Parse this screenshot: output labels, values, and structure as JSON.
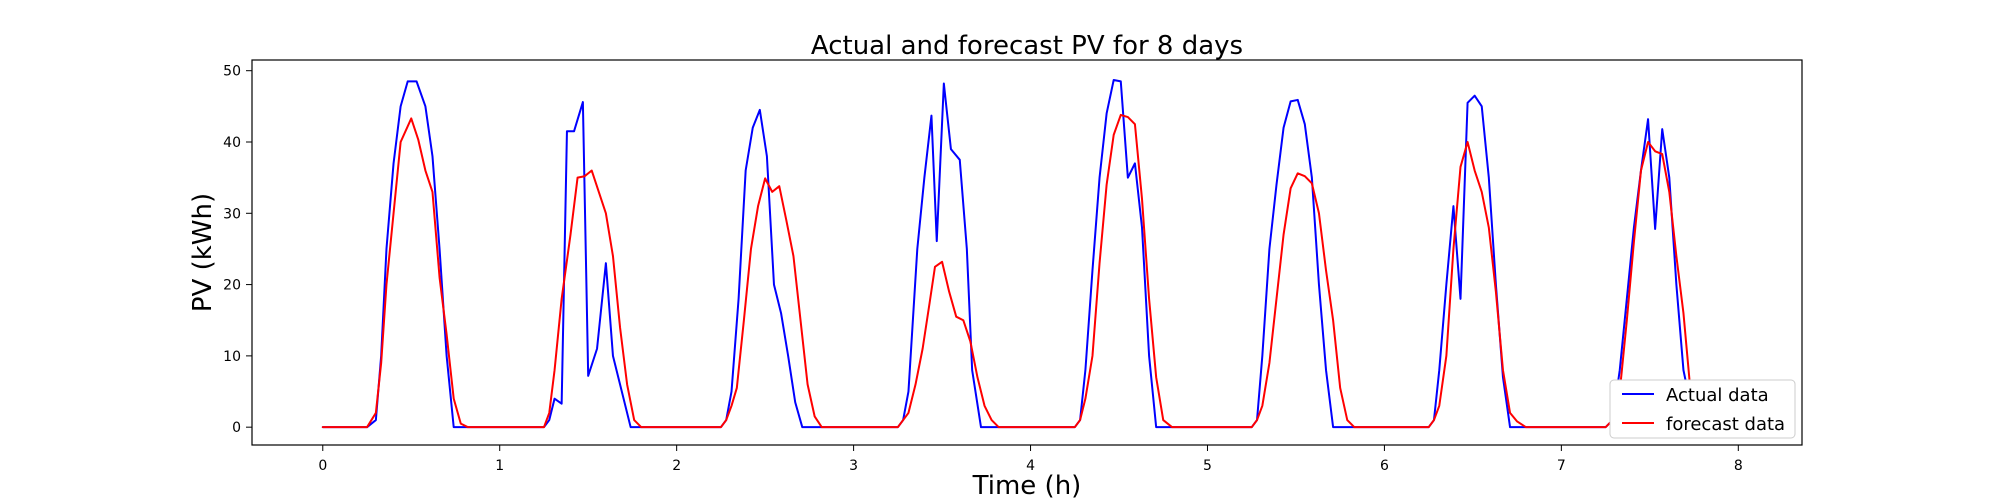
{
  "chart_data": {
    "type": "line",
    "title": "Actual and forecast PV for 8 days",
    "xlabel": "Time (h)",
    "ylabel": "PV (kWh)",
    "xlim": [
      -0.4,
      8.36
    ],
    "ylim": [
      -2.5,
      51.5
    ],
    "xticks": [
      0,
      1,
      2,
      3,
      4,
      5,
      6,
      7,
      8
    ],
    "yticks": [
      0,
      10,
      20,
      30,
      40,
      50
    ],
    "grid": false,
    "legend_position": "lower right",
    "series": [
      {
        "name": "Actual data",
        "color": "#0000ff",
        "points": [
          [
            0,
            0
          ],
          [
            0.25,
            0
          ],
          [
            0.3,
            1
          ],
          [
            0.33,
            10
          ],
          [
            0.36,
            25
          ],
          [
            0.4,
            37
          ],
          [
            0.44,
            45
          ],
          [
            0.48,
            48.5
          ],
          [
            0.53,
            48.5
          ],
          [
            0.58,
            45
          ],
          [
            0.62,
            38
          ],
          [
            0.66,
            25
          ],
          [
            0.7,
            10
          ],
          [
            0.74,
            0
          ],
          [
            0.8,
            0
          ],
          [
            1,
            0
          ],
          [
            1.25,
            0
          ],
          [
            1.28,
            1
          ],
          [
            1.31,
            4
          ],
          [
            1.35,
            3.3
          ],
          [
            1.38,
            41.5
          ],
          [
            1.42,
            41.5
          ],
          [
            1.47,
            45.6
          ],
          [
            1.5,
            7.2
          ],
          [
            1.55,
            11
          ],
          [
            1.6,
            23
          ],
          [
            1.64,
            10
          ],
          [
            1.68,
            6
          ],
          [
            1.74,
            0
          ],
          [
            1.8,
            0
          ],
          [
            2,
            0
          ],
          [
            2.25,
            0
          ],
          [
            2.28,
            1
          ],
          [
            2.31,
            5
          ],
          [
            2.35,
            18
          ],
          [
            2.39,
            36
          ],
          [
            2.43,
            42
          ],
          [
            2.47,
            44.5
          ],
          [
            2.51,
            38
          ],
          [
            2.55,
            20
          ],
          [
            2.59,
            16
          ],
          [
            2.63,
            10
          ],
          [
            2.67,
            3.5
          ],
          [
            2.71,
            0
          ],
          [
            2.8,
            0
          ],
          [
            3,
            0
          ],
          [
            3.25,
            0
          ],
          [
            3.28,
            1
          ],
          [
            3.31,
            5
          ],
          [
            3.36,
            25
          ],
          [
            3.4,
            35
          ],
          [
            3.44,
            43.7
          ],
          [
            3.47,
            26.1
          ],
          [
            3.51,
            48.2
          ],
          [
            3.55,
            39
          ],
          [
            3.6,
            37.5
          ],
          [
            3.64,
            25
          ],
          [
            3.67,
            8
          ],
          [
            3.72,
            0
          ],
          [
            3.8,
            0
          ],
          [
            4,
            0
          ],
          [
            4.25,
            0
          ],
          [
            4.28,
            1
          ],
          [
            4.31,
            8
          ],
          [
            4.35,
            22
          ],
          [
            4.39,
            35
          ],
          [
            4.43,
            44
          ],
          [
            4.47,
            48.7
          ],
          [
            4.51,
            48.5
          ],
          [
            4.55,
            35
          ],
          [
            4.59,
            37
          ],
          [
            4.63,
            28
          ],
          [
            4.67,
            10
          ],
          [
            4.71,
            0
          ],
          [
            4.8,
            0
          ],
          [
            5,
            0
          ],
          [
            5.25,
            0
          ],
          [
            5.28,
            1
          ],
          [
            5.31,
            10
          ],
          [
            5.35,
            25
          ],
          [
            5.39,
            34
          ],
          [
            5.43,
            42
          ],
          [
            5.47,
            45.7
          ],
          [
            5.51,
            45.9
          ],
          [
            5.55,
            42.5
          ],
          [
            5.59,
            35
          ],
          [
            5.63,
            20
          ],
          [
            5.67,
            8
          ],
          [
            5.71,
            0
          ],
          [
            5.8,
            0
          ],
          [
            6,
            0
          ],
          [
            6.25,
            0
          ],
          [
            6.28,
            1
          ],
          [
            6.31,
            8
          ],
          [
            6.35,
            20
          ],
          [
            6.39,
            31
          ],
          [
            6.43,
            18
          ],
          [
            6.47,
            45.5
          ],
          [
            6.51,
            46.5
          ],
          [
            6.55,
            45
          ],
          [
            6.59,
            35
          ],
          [
            6.63,
            20
          ],
          [
            6.67,
            7
          ],
          [
            6.71,
            0
          ],
          [
            6.8,
            0
          ],
          [
            7,
            0
          ],
          [
            7.25,
            0
          ],
          [
            7.29,
            1
          ],
          [
            7.33,
            8
          ],
          [
            7.37,
            18
          ],
          [
            7.41,
            28
          ],
          [
            7.45,
            36
          ],
          [
            7.49,
            43.2
          ],
          [
            7.53,
            27.8
          ],
          [
            7.57,
            41.8
          ],
          [
            7.61,
            35
          ],
          [
            7.65,
            20
          ],
          [
            7.69,
            8
          ],
          [
            7.74,
            2
          ],
          [
            7.8,
            0
          ]
        ]
      },
      {
        "name": "forecast data",
        "color": "#ff0000",
        "points": [
          [
            0,
            0
          ],
          [
            0.25,
            0
          ],
          [
            0.3,
            2
          ],
          [
            0.33,
            9
          ],
          [
            0.36,
            20
          ],
          [
            0.4,
            30
          ],
          [
            0.44,
            40
          ],
          [
            0.5,
            43.3
          ],
          [
            0.54,
            40.3
          ],
          [
            0.58,
            36
          ],
          [
            0.62,
            33
          ],
          [
            0.66,
            21
          ],
          [
            0.7,
            13
          ],
          [
            0.74,
            4
          ],
          [
            0.78,
            0.5
          ],
          [
            0.82,
            0
          ],
          [
            1,
            0
          ],
          [
            1.25,
            0
          ],
          [
            1.28,
            2
          ],
          [
            1.31,
            8
          ],
          [
            1.35,
            18
          ],
          [
            1.4,
            27
          ],
          [
            1.44,
            35
          ],
          [
            1.48,
            35.2
          ],
          [
            1.52,
            36
          ],
          [
            1.56,
            33
          ],
          [
            1.6,
            30
          ],
          [
            1.64,
            24
          ],
          [
            1.68,
            14
          ],
          [
            1.72,
            6
          ],
          [
            1.76,
            1
          ],
          [
            1.8,
            0
          ],
          [
            2,
            0
          ],
          [
            2.25,
            0
          ],
          [
            2.28,
            1
          ],
          [
            2.31,
            3
          ],
          [
            2.34,
            5.5
          ],
          [
            2.38,
            15
          ],
          [
            2.42,
            25
          ],
          [
            2.46,
            31
          ],
          [
            2.5,
            34.9
          ],
          [
            2.54,
            33
          ],
          [
            2.58,
            33.8
          ],
          [
            2.62,
            29
          ],
          [
            2.66,
            24
          ],
          [
            2.7,
            15
          ],
          [
            2.74,
            6
          ],
          [
            2.78,
            1.5
          ],
          [
            2.82,
            0
          ],
          [
            3,
            0
          ],
          [
            3.25,
            0
          ],
          [
            3.28,
            1
          ],
          [
            3.31,
            2
          ],
          [
            3.35,
            6
          ],
          [
            3.39,
            11
          ],
          [
            3.43,
            17.5
          ],
          [
            3.46,
            22.5
          ],
          [
            3.5,
            23.2
          ],
          [
            3.54,
            19
          ],
          [
            3.58,
            15.5
          ],
          [
            3.62,
            15
          ],
          [
            3.66,
            12
          ],
          [
            3.7,
            7
          ],
          [
            3.74,
            3
          ],
          [
            3.78,
            1
          ],
          [
            3.82,
            0
          ],
          [
            4,
            0
          ],
          [
            4.25,
            0
          ],
          [
            4.28,
            1
          ],
          [
            4.31,
            4
          ],
          [
            4.35,
            10
          ],
          [
            4.39,
            23
          ],
          [
            4.43,
            34
          ],
          [
            4.47,
            41
          ],
          [
            4.51,
            43.8
          ],
          [
            4.55,
            43.5
          ],
          [
            4.59,
            42.5
          ],
          [
            4.63,
            32
          ],
          [
            4.67,
            18
          ],
          [
            4.71,
            7
          ],
          [
            4.75,
            1
          ],
          [
            4.8,
            0
          ],
          [
            5,
            0
          ],
          [
            5.25,
            0
          ],
          [
            5.28,
            1
          ],
          [
            5.31,
            3
          ],
          [
            5.35,
            9
          ],
          [
            5.39,
            18
          ],
          [
            5.43,
            27
          ],
          [
            5.47,
            33.5
          ],
          [
            5.51,
            35.6
          ],
          [
            5.55,
            35.2
          ],
          [
            5.59,
            34.2
          ],
          [
            5.63,
            30
          ],
          [
            5.67,
            22
          ],
          [
            5.71,
            15
          ],
          [
            5.75,
            5.5
          ],
          [
            5.79,
            1
          ],
          [
            5.83,
            0
          ],
          [
            6,
            0
          ],
          [
            6.25,
            0
          ],
          [
            6.28,
            1
          ],
          [
            6.31,
            3
          ],
          [
            6.35,
            10
          ],
          [
            6.39,
            25
          ],
          [
            6.43,
            36.5
          ],
          [
            6.47,
            40
          ],
          [
            6.51,
            36
          ],
          [
            6.55,
            33
          ],
          [
            6.59,
            28
          ],
          [
            6.63,
            19
          ],
          [
            6.67,
            8
          ],
          [
            6.71,
            2
          ],
          [
            6.75,
            0.8
          ],
          [
            6.8,
            0
          ],
          [
            7,
            0
          ],
          [
            7.25,
            0
          ],
          [
            7.29,
            1
          ],
          [
            7.33,
            5
          ],
          [
            7.37,
            15
          ],
          [
            7.41,
            26
          ],
          [
            7.45,
            36
          ],
          [
            7.49,
            40
          ],
          [
            7.53,
            38.7
          ],
          [
            7.57,
            38.3
          ],
          [
            7.61,
            33
          ],
          [
            7.65,
            24
          ],
          [
            7.69,
            16
          ],
          [
            7.73,
            5
          ],
          [
            7.77,
            1
          ],
          [
            7.8,
            0
          ]
        ]
      }
    ]
  }
}
